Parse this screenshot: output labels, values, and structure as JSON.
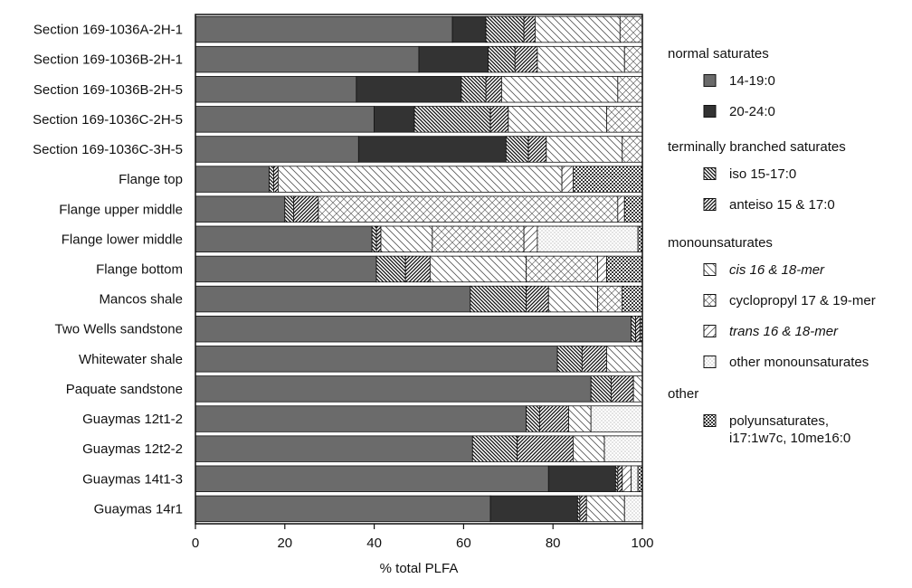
{
  "chart_data": {
    "type": "bar",
    "orientation": "horizontal",
    "stacked": true,
    "xlabel": "% total PLFA",
    "xlim": [
      0,
      100
    ],
    "xticks": [
      "0",
      "20",
      "40",
      "60",
      "80",
      "100"
    ],
    "grid": false,
    "legend_placement": "right",
    "categories": [
      "Section 169-1036A-2H-1",
      "Section 169-1036B-2H-1",
      "Section 169-1036B-2H-5",
      "Section 169-1036C-2H-5",
      "Section 169-1036C-3H-5",
      "Flange top",
      "Flange upper middle",
      "Flange lower middle",
      "Flange bottom",
      "Mancos shale",
      "Two Wells sandstone",
      "Whitewater shale",
      "Paquate sandstone",
      "Guaymas 12t1-2",
      "Guaymas 12t2-2",
      "Guaymas 14t1-3",
      "Guaymas 14r1"
    ],
    "series": [
      {
        "name": "14-19:0",
        "pattern": "solid-gray",
        "color": "#6b6b6b",
        "values": [
          57.5,
          50,
          36,
          40,
          36.5,
          16.5,
          20,
          39.5,
          40.5,
          61.5,
          97.5,
          81,
          88.5,
          74,
          62,
          79,
          66
        ]
      },
      {
        "name": "20-24:0",
        "pattern": "solid-dark",
        "color": "#333333",
        "values": [
          7.5,
          15.5,
          23.5,
          9,
          33,
          0,
          0,
          0,
          0,
          0,
          0,
          0,
          0,
          0,
          0,
          15,
          19.5
        ]
      },
      {
        "name": "iso 15-17:0",
        "pattern": "dense-diagonal-down",
        "values": [
          8.5,
          6,
          5.5,
          17,
          5,
          1,
          2,
          1,
          6.5,
          12.5,
          1,
          5.5,
          4.5,
          3,
          10,
          0.5,
          0.5
        ]
      },
      {
        "name": "anteiso 15 & 17:0",
        "pattern": "dense-diagonal-up",
        "values": [
          2.5,
          5,
          3.5,
          4,
          4,
          1,
          5.5,
          1,
          5.5,
          5,
          1,
          5.5,
          5,
          6.5,
          12.5,
          1,
          1.5
        ]
      },
      {
        "name": "cis 16 & 18-mer",
        "pattern": "sparse-diagonal-down",
        "values": [
          19,
          19.5,
          26,
          22,
          17,
          63.5,
          0,
          11.5,
          21.5,
          11,
          0,
          8,
          2,
          5,
          7,
          0,
          8.5
        ]
      },
      {
        "name": "cyclopropyl 17 & 19-mer",
        "pattern": "crosshatch",
        "values": [
          5,
          4,
          5.5,
          8,
          4.5,
          0,
          67,
          20.5,
          16,
          5.5,
          0,
          0,
          0,
          0,
          0,
          0,
          0
        ]
      },
      {
        "name": "trans 16 & 18-mer",
        "pattern": "sparse-diagonal-up",
        "values": [
          0,
          0,
          0,
          0,
          0,
          2.5,
          1.5,
          3,
          2,
          0,
          0,
          0,
          0,
          0,
          0,
          2,
          0
        ]
      },
      {
        "name": "other monounsaturates",
        "pattern": "dots",
        "values": [
          0,
          0,
          0,
          0,
          0,
          0,
          0,
          22.5,
          0,
          0,
          0,
          0,
          0,
          11.5,
          8.5,
          1.5,
          4
        ]
      },
      {
        "name": "polyunsaturates, i17:1w7c, 10me16:0",
        "pattern": "dark-dots",
        "values": [
          0,
          0,
          0,
          0,
          0,
          15.5,
          4,
          1.5,
          8,
          4.5,
          0.5,
          0,
          0,
          0,
          0,
          1,
          0
        ]
      }
    ],
    "legend": [
      {
        "title": "normal saturates",
        "items": [
          {
            "label": "14-19:0",
            "pattern": "solid-gray",
            "italic": false
          },
          {
            "label": "20-24:0",
            "pattern": "solid-dark",
            "italic": false
          }
        ]
      },
      {
        "title": "terminally branched saturates",
        "items": [
          {
            "label": "iso 15-17:0",
            "pattern": "dense-diagonal-down",
            "italic": false
          },
          {
            "label": "anteiso 15 & 17:0",
            "pattern": "dense-diagonal-up",
            "italic": false
          }
        ]
      },
      {
        "title": "monounsaturates",
        "items": [
          {
            "label": "cis 16 & 18-mer",
            "pattern": "sparse-diagonal-down",
            "italic": true
          },
          {
            "label": "cyclopropyl 17 & 19-mer",
            "pattern": "crosshatch",
            "italic": false
          },
          {
            "label": "trans 16 & 18-mer",
            "pattern": "sparse-diagonal-up",
            "italic": true
          },
          {
            "label": "other monounsaturates",
            "pattern": "dots",
            "italic": false
          }
        ]
      },
      {
        "title": "other",
        "items": [
          {
            "label": "polyunsaturates,\ni17:1w7c, 10me16:0",
            "pattern": "dark-dots",
            "italic": false
          }
        ]
      }
    ]
  }
}
